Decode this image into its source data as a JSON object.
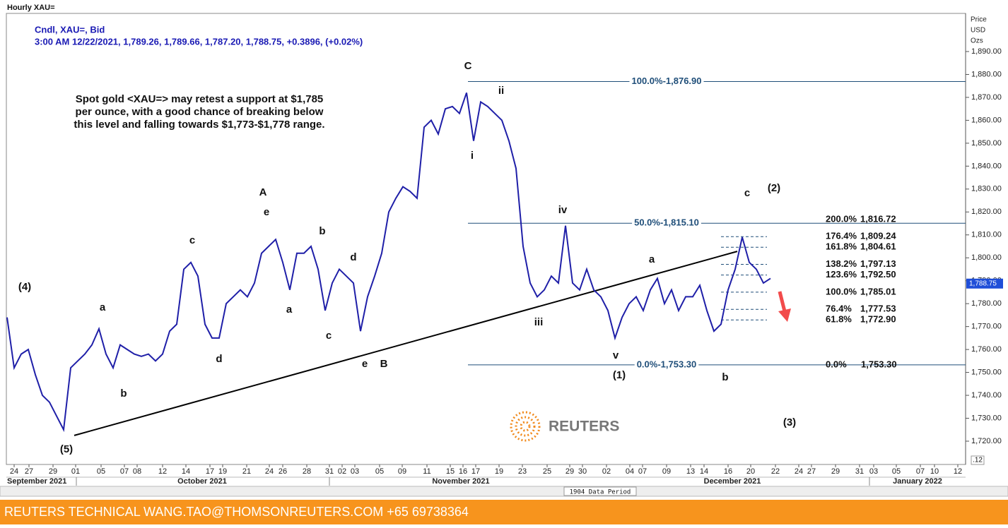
{
  "title": "Hourly XAU=",
  "logo": "REUTERS",
  "data_period": "1904 Data Period",
  "scale_label": ".12",
  "footer": "REUTERS TECHNICAL  WANG.TAO@THOMSONREUTERS.COM  +65 69738364",
  "chart_data": {
    "type": "line",
    "info": [
      "Cndl, XAU=, Bid",
      "3:00 AM 12/22/2021, 1,789.26, 1,789.66, 1,787.20, 1,788.75, +0.3896, (+0.02%)"
    ],
    "y_title": [
      "Price",
      "USD",
      "Ozs"
    ],
    "ylim": [
      1716,
      1900
    ],
    "yticks": [
      {
        "value": 1720,
        "label": "1,720.00"
      },
      {
        "value": 1730,
        "label": "1,730.00"
      },
      {
        "value": 1740,
        "label": "1,740.00"
      },
      {
        "value": 1750,
        "label": "1,750.00"
      },
      {
        "value": 1760,
        "label": "1,760.00"
      },
      {
        "value": 1770,
        "label": "1,770.00"
      },
      {
        "value": 1780,
        "label": "1,780.00"
      },
      {
        "value": 1790,
        "label": "1,790.00"
      },
      {
        "value": 1800,
        "label": "1,800.00"
      },
      {
        "value": 1810,
        "label": "1,810.00"
      },
      {
        "value": 1820,
        "label": "1,820.00"
      },
      {
        "value": 1830,
        "label": "1,830.00"
      },
      {
        "value": 1840,
        "label": "1,840.00"
      },
      {
        "value": 1850,
        "label": "1,850.00"
      },
      {
        "value": 1860,
        "label": "1,860.00"
      },
      {
        "value": 1870,
        "label": "1,870.00"
      },
      {
        "value": 1880,
        "label": "1,880.00"
      },
      {
        "value": 1890,
        "label": "1,890.00"
      }
    ],
    "x_day_labels": [
      "24",
      "27",
      "29",
      "01",
      "05",
      "07",
      "08",
      "12",
      "14",
      "17",
      "19",
      "21",
      "24",
      "26",
      "28",
      "31",
      "02",
      "03",
      "05",
      "09",
      "11",
      "15",
      "16",
      "17",
      "19",
      "23",
      "25",
      "29",
      "30",
      "02",
      "04",
      "07",
      "09",
      "13",
      "14",
      "16",
      "20",
      "22",
      "24",
      "27",
      "29",
      "31",
      "03",
      "05",
      "07",
      "10",
      "12"
    ],
    "x_month_labels": [
      "September 2021",
      "October 2021",
      "November 2021",
      "December 2021",
      "January 2022"
    ],
    "series": [
      {
        "name": "XAU=",
        "color": "#1f1fa8",
        "values": [
          1774,
          1752,
          1758,
          1760,
          1749,
          1740,
          1737,
          1731,
          1725,
          1752,
          1755,
          1758,
          1762,
          1769,
          1758,
          1752,
          1762,
          1760,
          1758,
          1757,
          1758,
          1755,
          1758,
          1768,
          1771,
          1795,
          1798,
          1792,
          1771,
          1765,
          1765,
          1780,
          1783,
          1786,
          1783,
          1789,
          1802,
          1805,
          1808,
          1798,
          1786,
          1802,
          1802,
          1805,
          1795,
          1777,
          1789,
          1795,
          1792,
          1789,
          1768,
          1783,
          1792,
          1802,
          1820,
          1826,
          1831,
          1829,
          1826,
          1857,
          1860,
          1854,
          1865,
          1866,
          1863,
          1872,
          1851,
          1868,
          1866,
          1863,
          1860,
          1851,
          1839,
          1805,
          1789,
          1783,
          1786,
          1792,
          1789,
          1814,
          1789,
          1786,
          1795,
          1786,
          1783,
          1777,
          1765,
          1774,
          1780,
          1783,
          1777,
          1786,
          1791,
          1780,
          1786,
          1777,
          1783,
          1783,
          1788,
          1777,
          1768,
          1771,
          1786,
          1795,
          1809,
          1798,
          1795,
          1789,
          1791
        ]
      }
    ],
    "last_price": {
      "value": 1788.75,
      "label": "1,788.75"
    },
    "trendline": [
      1722.5,
      1802.8
    ],
    "fib_main": [
      {
        "value": 1876.9,
        "label": "100.0%-1,876.90"
      },
      {
        "value": 1815.1,
        "label": "50.0%-1,815.10"
      },
      {
        "value": 1753.3,
        "label": "0.0%-1,753.30"
      }
    ],
    "fib_ext": [
      {
        "value": 1816.72,
        "pct": "200.0%",
        "label": "1,816.72"
      },
      {
        "value": 1809.24,
        "pct": "176.4%",
        "label": "1,809.24"
      },
      {
        "value": 1804.61,
        "pct": "161.8%",
        "label": "1,804.61"
      },
      {
        "value": 1797.13,
        "pct": "138.2%",
        "label": "1,797.13"
      },
      {
        "value": 1792.5,
        "pct": "123.6%",
        "label": "1,792.50"
      },
      {
        "value": 1785.01,
        "pct": "100.0%",
        "label": "1,785.01"
      },
      {
        "value": 1777.53,
        "pct": "76.4%",
        "label": "1,777.53"
      },
      {
        "value": 1772.9,
        "pct": "61.8%",
        "label": "1,772.90"
      },
      {
        "value": 1753.3,
        "pct": "0.0%",
        "label": "1,753.30"
      }
    ],
    "note": [
      "Spot gold <XAU=> may retest a support at $1,785",
      "per ounce, with  a good chance of breaking below",
      "this level and falling towards $1,773-$1,778 range."
    ],
    "annotations": [
      "C",
      "ii",
      "i",
      "iv",
      "iii",
      "v",
      "(1)",
      "(2)",
      "c",
      "a",
      "b",
      "A",
      "e",
      "b",
      "d",
      "a",
      "c",
      "d",
      "e",
      "B",
      "c",
      "a",
      "b",
      "(4)",
      "(5)",
      "(3)"
    ]
  }
}
